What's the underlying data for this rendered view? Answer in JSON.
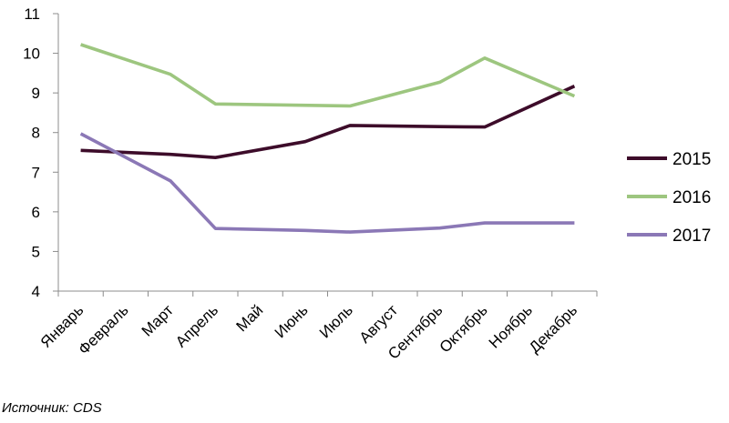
{
  "chart_data": {
    "type": "line",
    "categories": [
      "Январь",
      "Февраль",
      "Март",
      "Апрель",
      "Май",
      "Июнь",
      "Июль",
      "Август",
      "Сентябрь",
      "Октябрь",
      "Ноябрь",
      "Декабрь"
    ],
    "ylim": [
      4,
      11
    ],
    "yticks": [
      4,
      5,
      6,
      7,
      8,
      9,
      10,
      11
    ],
    "grid": false,
    "legend_position": "right",
    "series": [
      {
        "name": "2015",
        "color": "#3d0c2a",
        "values": [
          7.55,
          null,
          7.45,
          7.37,
          null,
          7.77,
          8.18,
          null,
          8.15,
          8.14,
          null,
          9.17
        ]
      },
      {
        "name": "2016",
        "color": "#9dc67f",
        "values": [
          10.22,
          null,
          9.47,
          8.72,
          null,
          null,
          8.67,
          null,
          9.27,
          9.88,
          null,
          8.92
        ]
      },
      {
        "name": "2017",
        "color": "#8b78b6",
        "values": [
          7.97,
          null,
          6.78,
          5.58,
          null,
          5.53,
          5.49,
          null,
          5.59,
          5.72,
          null,
          5.72
        ]
      }
    ]
  },
  "source": "Источник: CDS"
}
